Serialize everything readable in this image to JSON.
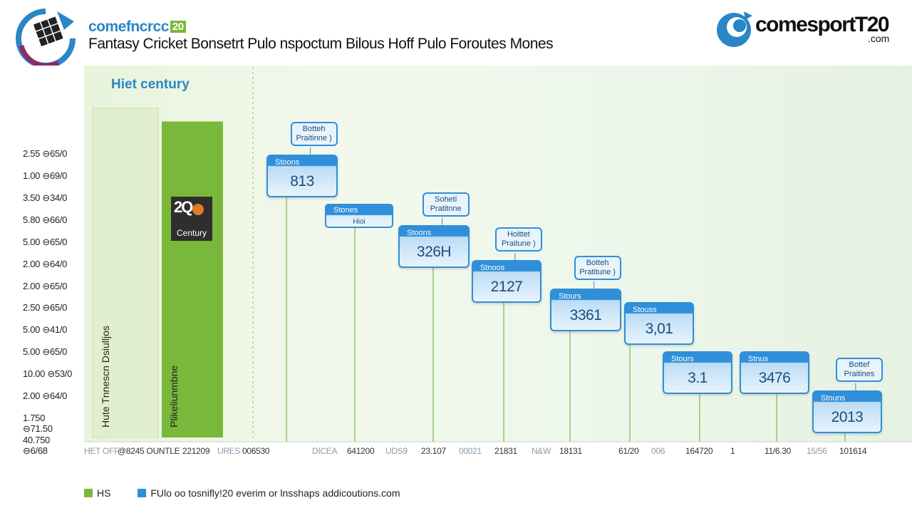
{
  "header": {
    "brand_small": "comefncrcc",
    "brand_tag": "20",
    "subtitle": "Fantasy Cricket Bonsetrt Pulo nspoctum Bilous Hoff Pulo Foroutes Mones",
    "right_brand": "comesportT20",
    "right_sub": ".com"
  },
  "colors": {
    "accent_blue": "#2f8fd9",
    "accent_green": "#7ab83c",
    "pale_green": "#e2efcf"
  },
  "chart_data": {
    "type": "bar",
    "title": "Hiet century",
    "y_ticks": [
      "2.55 ⊖65/0",
      "1.00 ⊖69/0",
      "3.50 ⊖34/0",
      "5.80 ⊖66/0",
      "5.00 ⊖65/0",
      "2.00 ⊖64/0",
      "2.00 ⊖65/0",
      "2.50 ⊖65/0",
      "5.00 ⊖41/0",
      "5.00 ⊖65/0",
      "10.00 ⊖53/0",
      "2.00 ⊖64/0",
      "1.750 ⊖71.50",
      "40.750 ⊖6/68"
    ],
    "x_ticks": [
      {
        "text": "HET OFF",
        "grey": true
      },
      {
        "text": "@8245 OUNTLE",
        "grey": false
      },
      {
        "text": "221209",
        "grey": false
      },
      {
        "text": "URES",
        "grey": true
      },
      {
        "text": "006530",
        "grey": false
      },
      {
        "text": "DICEA",
        "grey": true
      },
      {
        "text": "641200",
        "grey": false
      },
      {
        "text": "UDS9",
        "grey": true
      },
      {
        "text": "23.107",
        "grey": false
      },
      {
        "text": "00021",
        "grey": true
      },
      {
        "text": "21831",
        "grey": false
      },
      {
        "text": "N&W",
        "grey": true
      },
      {
        "text": "18131",
        "grey": false
      },
      {
        "text": "61/20",
        "grey": false
      },
      {
        "text": "006",
        "grey": true
      },
      {
        "text": "164720",
        "grey": false
      },
      {
        "text": "1",
        "grey": false
      },
      {
        "text": "11/6.30",
        "grey": false
      },
      {
        "text": "15/56",
        "grey": true
      },
      {
        "text": "101614",
        "grey": false
      }
    ],
    "bars": [
      {
        "label": "Hute Tnnescn Dsiulljos",
        "color": "#e2efcf",
        "value": 1.0
      },
      {
        "label": "Plikeliunmbne",
        "color": "#7ab83c",
        "value": 0.96
      }
    ],
    "badge": {
      "number": "2Q",
      "label": "Century"
    },
    "cards": [
      {
        "label": "Stoons",
        "value": "813",
        "level": 0.8,
        "callout": "Botteh Praitinne )"
      },
      {
        "label": "Stones",
        "value": "Hioi",
        "level": 0.66,
        "mini": true
      },
      {
        "label": "Stoons",
        "value": "326H",
        "level": 0.6,
        "callout": "Soheti Pratitnne"
      },
      {
        "label": "Stnoos",
        "value": "2127",
        "level": 0.5,
        "callout": "Hoittet Praitune )"
      },
      {
        "label": "Stours",
        "value": "3361",
        "level": 0.42,
        "callout": "Botteh Pratitune )"
      },
      {
        "label": "Stouss",
        "value": "3,01",
        "level": 0.38
      },
      {
        "label": "Stours",
        "value": "3.1",
        "level": 0.24
      },
      {
        "label": "Stnus",
        "value": "3476",
        "level": 0.24
      },
      {
        "label": "Stnuns",
        "value": "2013",
        "level": 0.13,
        "callout": "Bottef Praitines"
      }
    ],
    "grid": false,
    "legend_position": "bottom-left"
  },
  "legend": [
    {
      "label": "HS",
      "color": "#7ab83c"
    },
    {
      "label": "FUlo oo tosnifly!20 everim or lnsshaps addicoutions.com",
      "color": "#2f8fd9"
    }
  ]
}
